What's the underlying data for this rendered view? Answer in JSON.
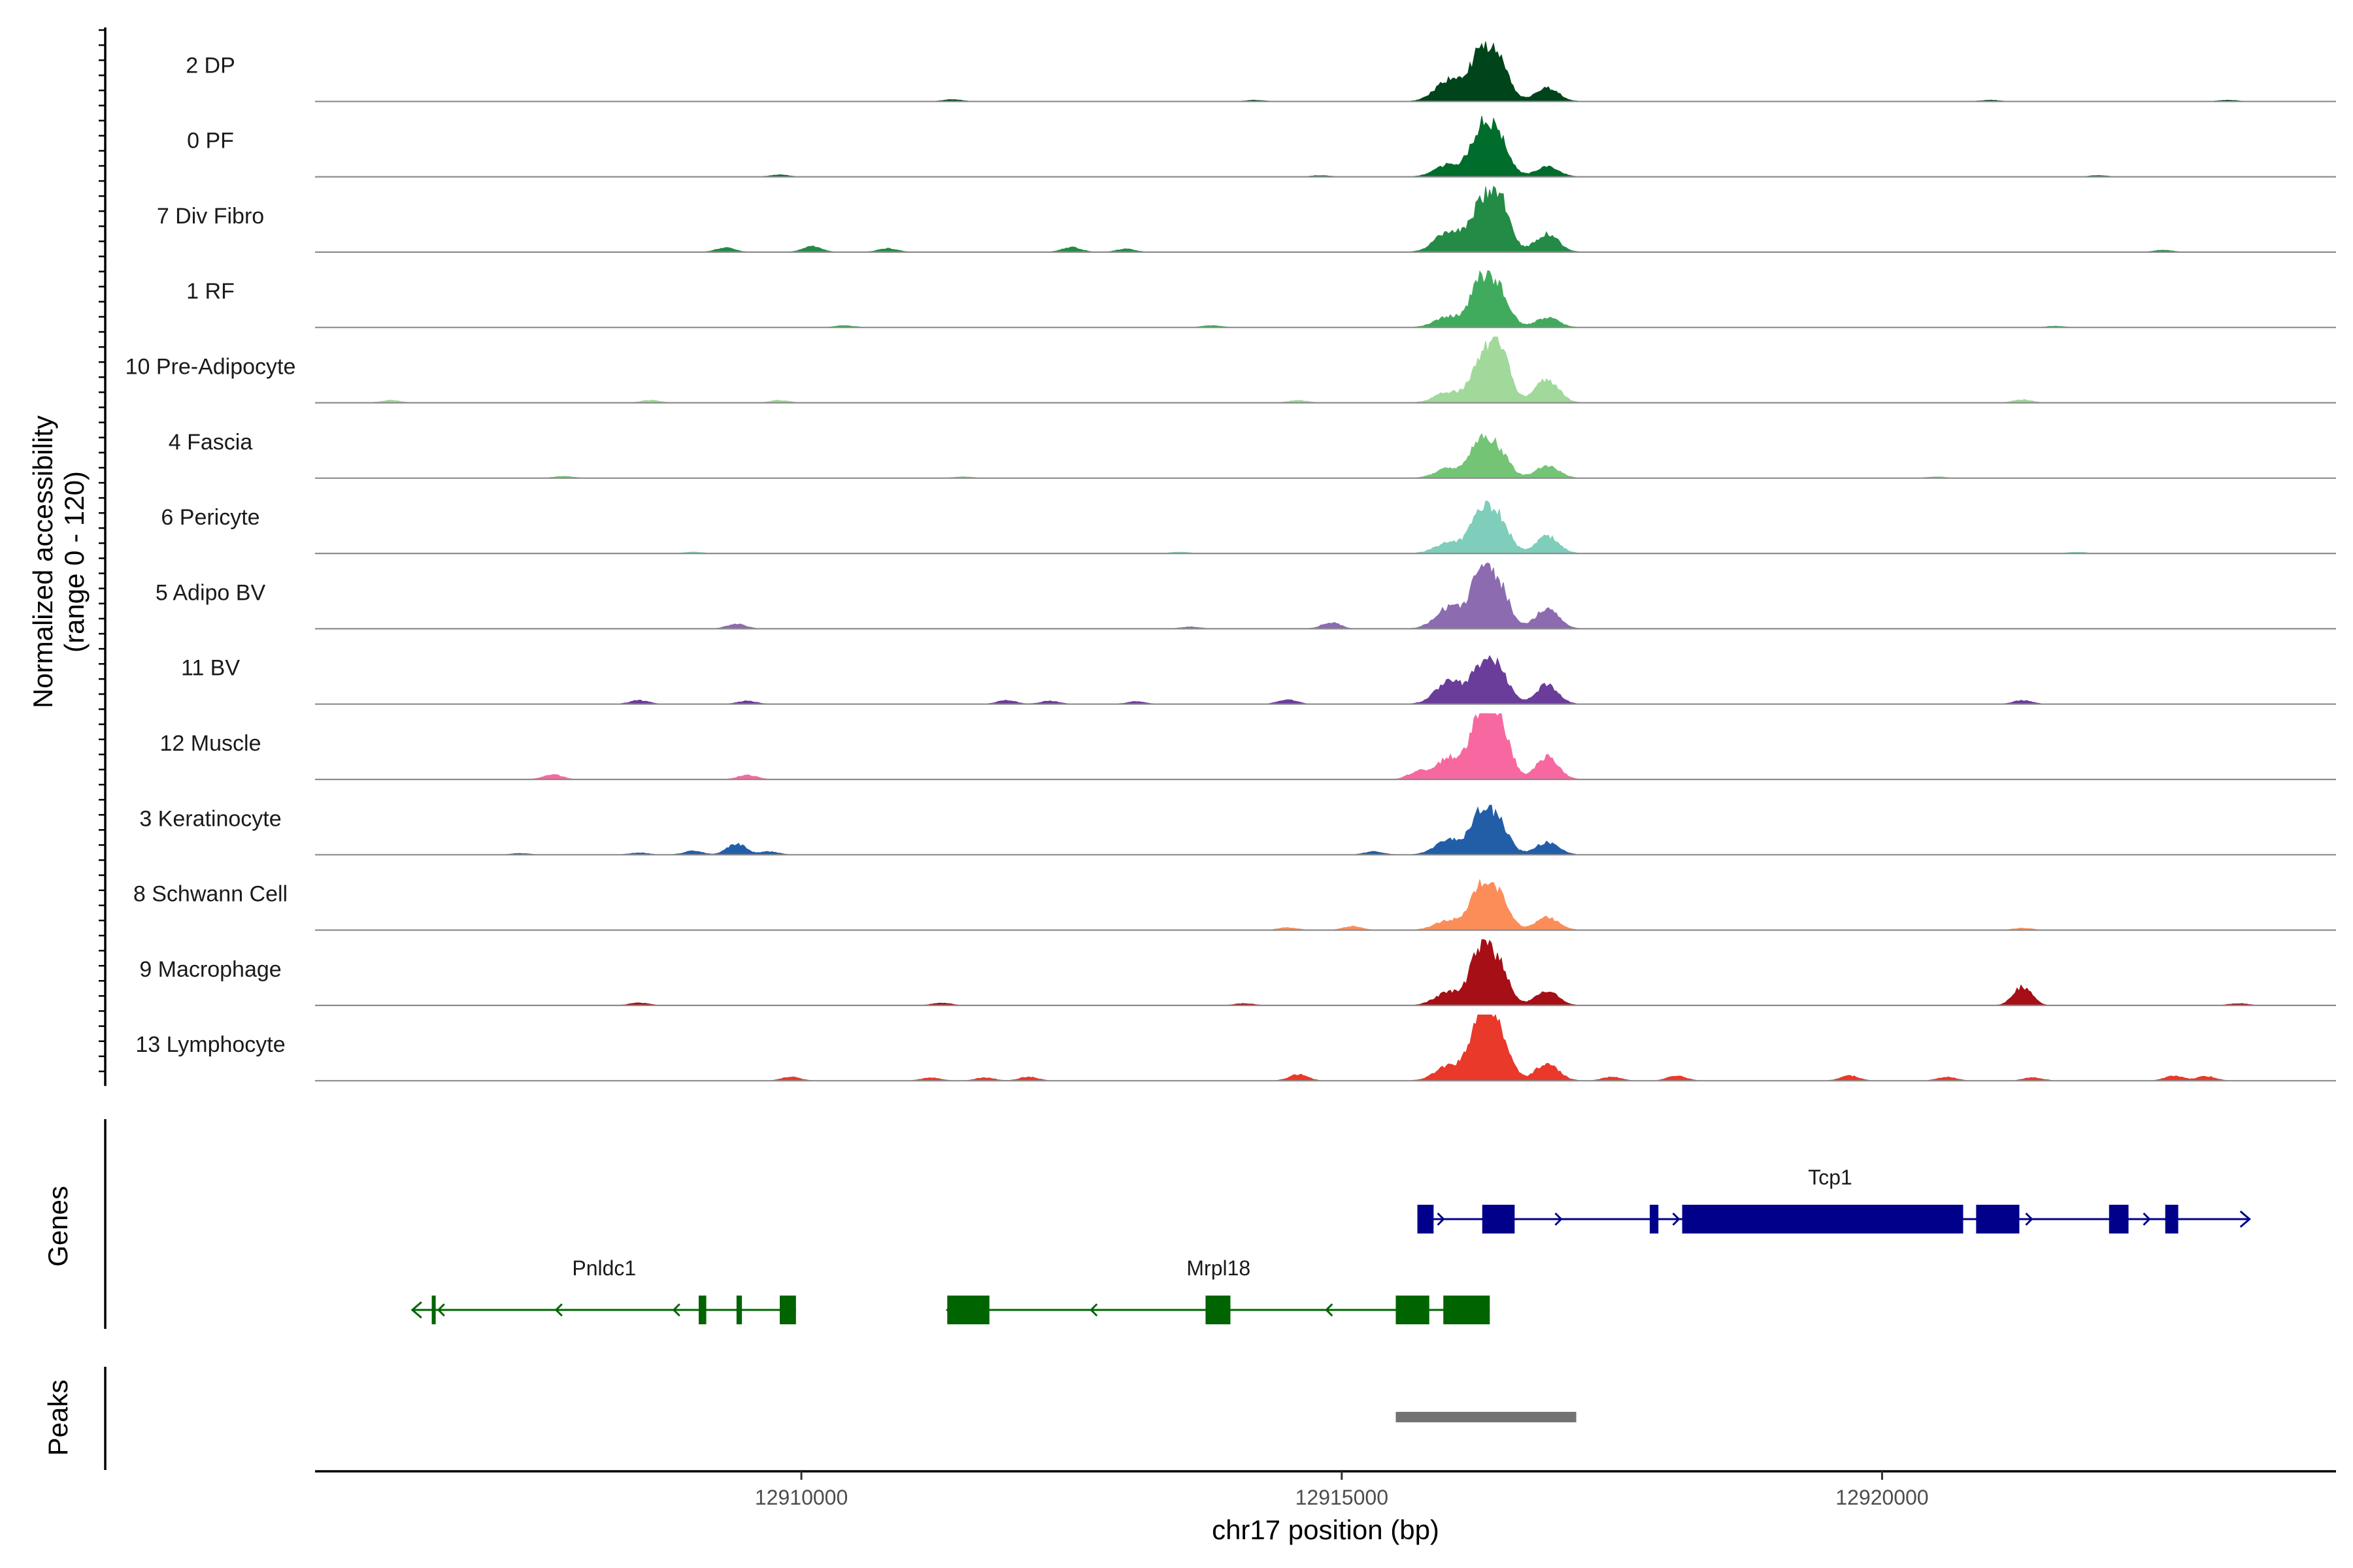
{
  "chart_data": {
    "type": "coverage",
    "chromosome": "chr17",
    "xlabel": "chr17 position (bp)",
    "ylabel": "Normalized accessibility",
    "ylabel_range": "(range 0 - 120)",
    "xlim": [
      12905500,
      12924200
    ],
    "xticks": [
      {
        "value": 12910000,
        "label": "12910000"
      },
      {
        "value": 12915000,
        "label": "12915000"
      },
      {
        "value": 12920000,
        "label": "12920000"
      }
    ],
    "tracks": [
      {
        "name": "2 DP",
        "color": "#00441b",
        "peak_heights": [
          0.36,
          0.72,
          0.66,
          0.22
        ],
        "minor": [
          [
            12911400,
            0.03
          ],
          [
            12914200,
            0.02
          ],
          [
            12921000,
            0.02
          ],
          [
            12923200,
            0.02
          ]
        ]
      },
      {
        "name": "0 PF",
        "color": "#006d2c",
        "peak_heights": [
          0.2,
          0.68,
          0.62,
          0.16
        ],
        "minor": [
          [
            12909800,
            0.03
          ],
          [
            12914800,
            0.02
          ],
          [
            12922000,
            0.02
          ]
        ]
      },
      {
        "name": "7 Div Fibro",
        "color": "#238b45",
        "peak_heights": [
          0.35,
          0.62,
          0.88,
          0.3
        ],
        "minor": [
          [
            12909300,
            0.07
          ],
          [
            12910100,
            0.1
          ],
          [
            12910800,
            0.06
          ],
          [
            12912500,
            0.08
          ],
          [
            12913000,
            0.05
          ],
          [
            12922600,
            0.03
          ]
        ]
      },
      {
        "name": "1 RF",
        "color": "#41ab5d",
        "peak_heights": [
          0.18,
          0.66,
          0.58,
          0.16
        ],
        "minor": [
          [
            12910400,
            0.03
          ],
          [
            12913800,
            0.03
          ],
          [
            12921600,
            0.02
          ]
        ]
      },
      {
        "name": "10 Pre-Adipocyte",
        "color": "#a1d99b",
        "peak_heights": [
          0.18,
          0.55,
          0.92,
          0.38
        ],
        "minor": [
          [
            12906200,
            0.04
          ],
          [
            12908600,
            0.04
          ],
          [
            12909800,
            0.04
          ],
          [
            12914600,
            0.04
          ],
          [
            12921300,
            0.05
          ]
        ]
      },
      {
        "name": "4 Fascia",
        "color": "#74c476",
        "peak_heights": [
          0.16,
          0.55,
          0.42,
          0.2
        ],
        "minor": [
          [
            12907800,
            0.03
          ],
          [
            12911500,
            0.02
          ],
          [
            12920500,
            0.02
          ]
        ]
      },
      {
        "name": "6 Pericyte",
        "color": "#7fcdbb",
        "peak_heights": [
          0.18,
          0.6,
          0.56,
          0.28
        ],
        "minor": [
          [
            12909000,
            0.02
          ],
          [
            12913500,
            0.02
          ],
          [
            12921800,
            0.02
          ]
        ]
      },
      {
        "name": "5 Adipo BV",
        "color": "#8c6bb1",
        "peak_heights": [
          0.35,
          0.78,
          0.68,
          0.32
        ],
        "minor": [
          [
            12909400,
            0.08
          ],
          [
            12914900,
            0.1
          ],
          [
            12913600,
            0.03
          ]
        ]
      },
      {
        "name": "11 BV",
        "color": "#6a3d9a",
        "peak_heights": [
          0.36,
          0.5,
          0.55,
          0.22
        ],
        "minor": [
          [
            12908500,
            0.06
          ],
          [
            12909500,
            0.05
          ],
          [
            12911900,
            0.06
          ],
          [
            12912300,
            0.05
          ],
          [
            12913100,
            0.04
          ],
          [
            12914500,
            0.07
          ],
          [
            12916900,
            0.1
          ],
          [
            12921300,
            0.06
          ]
        ]
      },
      {
        "name": "12 Muscle",
        "color": "#f768a1",
        "peak_heights": [
          0.35,
          0.92,
          0.98,
          0.3
        ],
        "minor": [
          [
            12907700,
            0.08
          ],
          [
            12909500,
            0.07
          ],
          [
            12915700,
            0.12
          ],
          [
            12916900,
            0.08
          ]
        ]
      },
      {
        "name": "3 Keratinocyte",
        "color": "#225ea8",
        "peak_heights": [
          0.25,
          0.58,
          0.5,
          0.2
        ],
        "minor": [
          [
            12907400,
            0.02
          ],
          [
            12908500,
            0.03
          ],
          [
            12909000,
            0.06
          ],
          [
            12909400,
            0.18
          ],
          [
            12909700,
            0.05
          ],
          [
            12915300,
            0.05
          ]
        ]
      },
      {
        "name": "8 Schwann Cell",
        "color": "#fc8d59",
        "peak_heights": [
          0.16,
          0.6,
          0.55,
          0.2
        ],
        "minor": [
          [
            12914500,
            0.04
          ],
          [
            12915100,
            0.06
          ],
          [
            12921300,
            0.03
          ]
        ]
      },
      {
        "name": "9 Macrophage",
        "color": "#a50f15",
        "peak_heights": [
          0.22,
          0.82,
          0.62,
          0.18
        ],
        "minor": [
          [
            12908500,
            0.04
          ],
          [
            12911300,
            0.04
          ],
          [
            12914100,
            0.03
          ],
          [
            12916900,
            0.06
          ],
          [
            12921300,
            0.3
          ],
          [
            12923300,
            0.03
          ]
        ]
      },
      {
        "name": "13 Lymphocyte",
        "color": "#e8392b",
        "peak_heights": [
          0.25,
          1.0,
          0.8,
          0.28
        ],
        "minor": [
          [
            12909900,
            0.06
          ],
          [
            12911200,
            0.05
          ],
          [
            12911700,
            0.05
          ],
          [
            12912100,
            0.06
          ],
          [
            12914600,
            0.1
          ],
          [
            12917500,
            0.06
          ],
          [
            12918100,
            0.08
          ],
          [
            12919700,
            0.08
          ],
          [
            12920600,
            0.06
          ],
          [
            12921400,
            0.05
          ],
          [
            12922700,
            0.08
          ],
          [
            12923000,
            0.07
          ]
        ]
      }
    ],
    "genes_track_label": "Genes",
    "genes": [
      {
        "name": "Tcp1",
        "strand": "+",
        "color": "#00008b",
        "start": 12915700,
        "end": 12923400,
        "exons": [
          [
            12915700,
            12915850
          ],
          [
            12916300,
            12916600
          ],
          [
            12917850,
            12917930
          ],
          [
            12918150,
            12920750
          ],
          [
            12920870,
            12921270
          ],
          [
            12922100,
            12922280
          ],
          [
            12922620,
            12922740
          ]
        ]
      },
      {
        "name": "Pnldc1",
        "strand": "-",
        "color": "#006400",
        "start": 12906400,
        "end": 12909950,
        "exons": [
          [
            12906580,
            12906600
          ],
          [
            12909050,
            12909120
          ],
          [
            12909400,
            12909450
          ],
          [
            12909800,
            12909950
          ]
        ]
      },
      {
        "name": "Mrpl18",
        "strand": "-",
        "color": "#006400",
        "start": 12911350,
        "end": 12916370,
        "exons": [
          [
            12911350,
            12911740
          ],
          [
            12913740,
            12913970
          ],
          [
            12915500,
            12915810
          ],
          [
            12915940,
            12916370
          ]
        ]
      }
    ],
    "peaks_track_label": "Peaks",
    "peaks": [
      {
        "start": 12915500,
        "end": 12917170,
        "color": "#737373"
      }
    ]
  }
}
